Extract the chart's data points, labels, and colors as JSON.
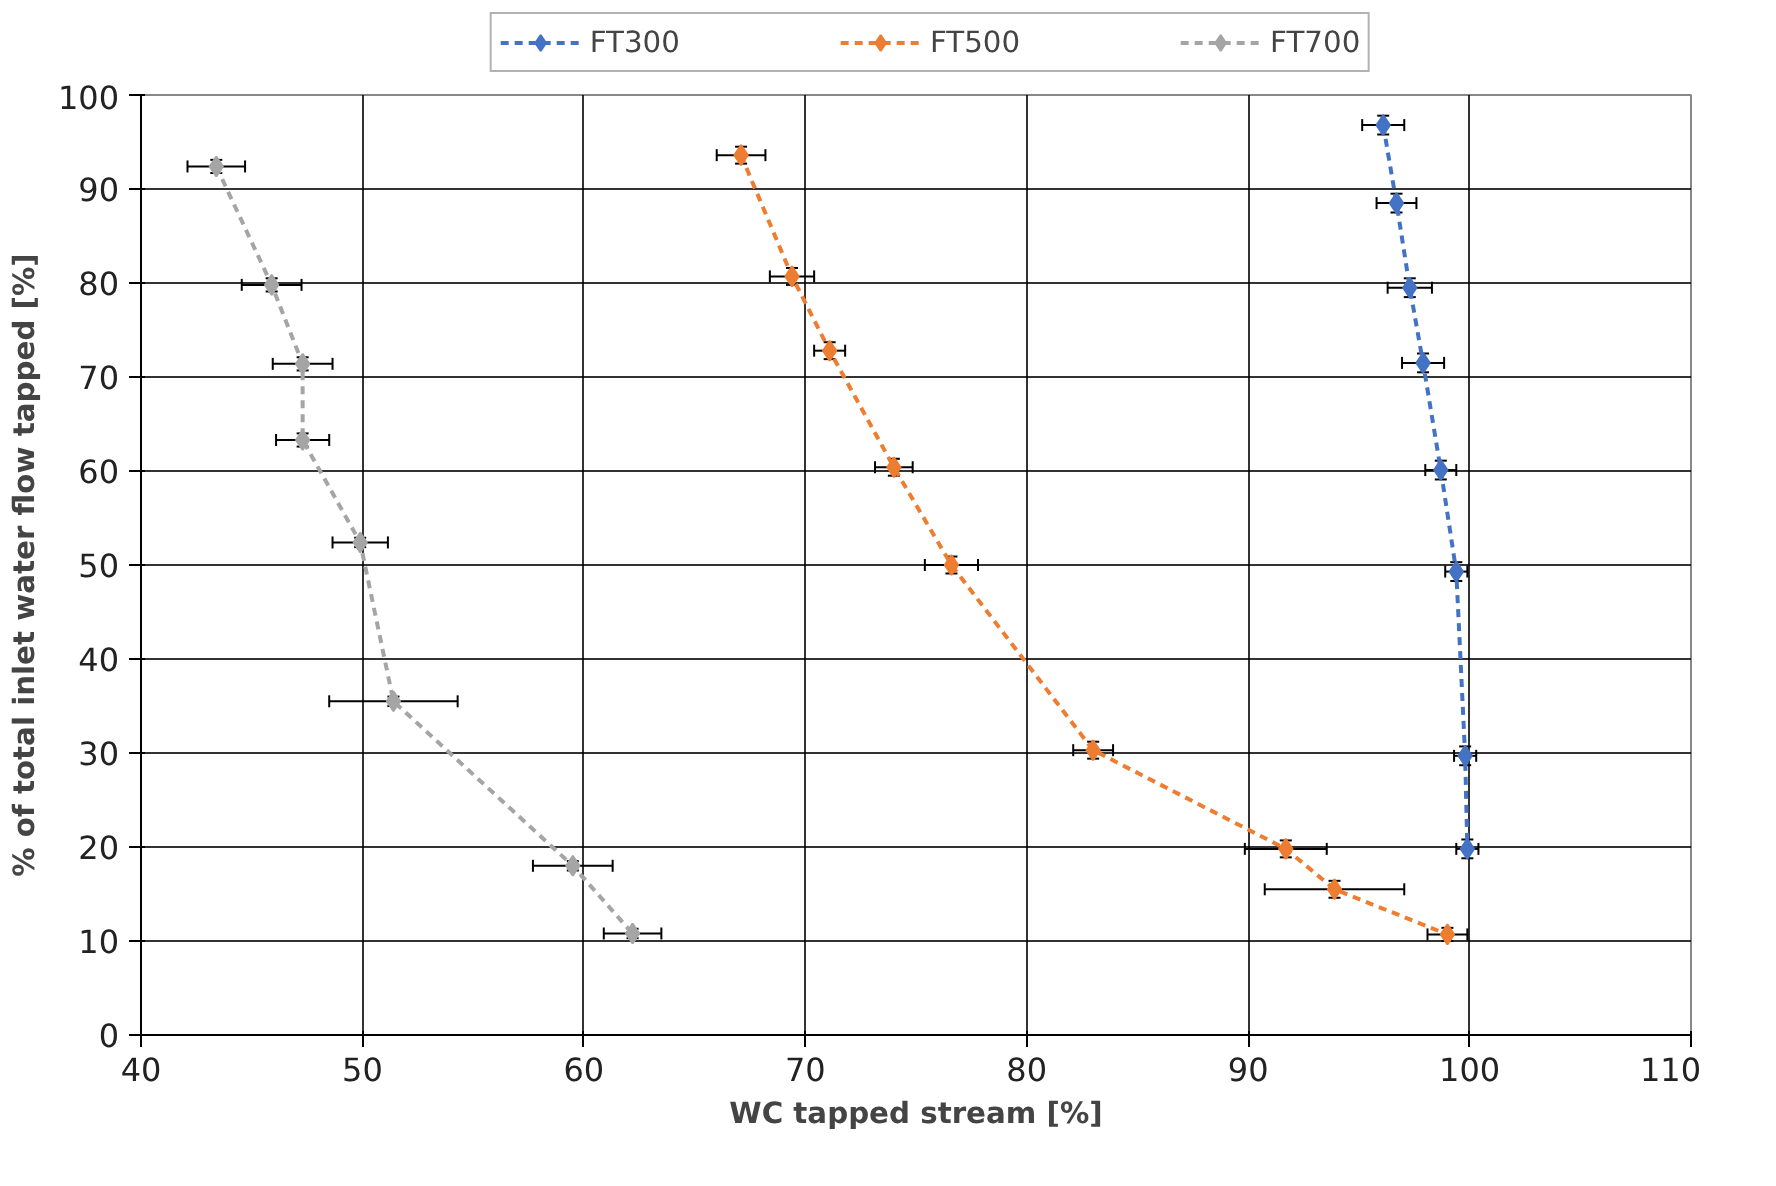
{
  "chart_data": {
    "type": "line",
    "xlabel": "WC tapped stream [%]",
    "ylabel": "% of total inlet water flow tapped [%]",
    "xlim": [
      40,
      110
    ],
    "xticks": [
      40,
      50,
      60,
      70,
      80,
      90,
      100,
      110
    ],
    "ylim": [
      0,
      100
    ],
    "yticks": [
      0,
      10,
      20,
      30,
      40,
      50,
      60,
      70,
      80,
      90,
      100
    ],
    "grid": true,
    "legend": "top",
    "marker": "diamond",
    "line_style": "dashed",
    "series": [
      {
        "name": "FT300",
        "color": "#4472c4",
        "x": [
          96.1,
          96.7,
          97.3,
          97.9,
          98.7,
          99.4,
          99.8,
          99.9
        ],
        "values": [
          96.8,
          88.5,
          79.5,
          71.5,
          60.1,
          49.3,
          29.7,
          19.8
        ],
        "xerrors": [
          0.95,
          0.9,
          1.0,
          0.95,
          0.7,
          0.5,
          0.5,
          0.5
        ],
        "errors": [
          1.0,
          1.0,
          1.0,
          1.0,
          1.0,
          1.0,
          1.0,
          1.0
        ]
      },
      {
        "name": "FT500",
        "color": "#ed7d31",
        "x": [
          67.1,
          69.4,
          71.1,
          74.0,
          76.6,
          83.0,
          91.7,
          93.9,
          99.0
        ],
        "values": [
          93.6,
          80.7,
          72.8,
          60.4,
          50.0,
          30.3,
          19.8,
          15.5,
          10.7
        ],
        "xerrors": [
          1.1,
          1.0,
          0.7,
          0.85,
          1.2,
          0.9,
          1.85,
          3.15,
          0.9
        ],
        "errors": [
          0.9,
          0.9,
          0.9,
          0.9,
          0.9,
          0.9,
          0.9,
          0.9,
          0.7
        ]
      },
      {
        "name": "FT700",
        "color": "#a5a5a5",
        "x": [
          43.4,
          45.9,
          47.3,
          47.3,
          49.9,
          51.4,
          59.5,
          62.2
        ],
        "values": [
          92.4,
          79.8,
          71.4,
          63.3,
          52.4,
          35.5,
          18.0,
          10.8
        ],
        "xerrors": [
          1.3,
          1.35,
          1.35,
          1.2,
          1.25,
          2.9,
          1.8,
          1.3
        ],
        "errors": [
          0.7,
          0.7,
          0.7,
          0.7,
          0.5,
          0.5,
          0.5,
          0.5
        ]
      }
    ]
  }
}
